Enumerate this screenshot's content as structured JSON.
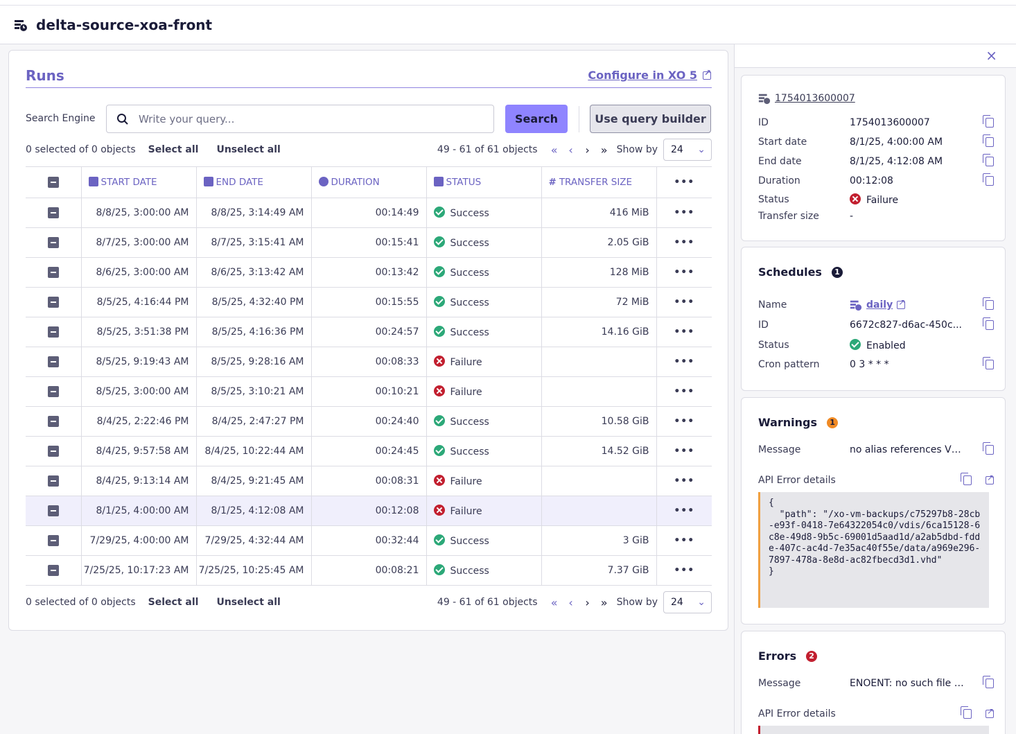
{
  "header": {
    "title": "delta-source-xoa-front",
    "icon": "backup-job-icon"
  },
  "runs": {
    "title": "Runs",
    "configure_link": "Configure in XO 5",
    "search_label": "Search Engine",
    "search_placeholder": "Write your query...",
    "search_button": "Search",
    "builder_button": "Use query builder",
    "selection": {
      "count": "0 selected of 0 objects",
      "select_all": "Select all",
      "unselect_all": "Unselect all"
    },
    "pager": {
      "range": "49 - 61 of 61 objects",
      "show_by_label": "Show by",
      "show_by_value": "24"
    },
    "columns": [
      "START DATE",
      "END DATE",
      "DURATION",
      "STATUS",
      "TRANSFER SIZE"
    ],
    "rows": [
      {
        "start": "8/8/25, 3:00:00 AM",
        "end": "8/8/25, 3:14:49 AM",
        "duration": "00:14:49",
        "status": "Success",
        "size": "416 MiB"
      },
      {
        "start": "8/7/25, 3:00:00 AM",
        "end": "8/7/25, 3:15:41 AM",
        "duration": "00:15:41",
        "status": "Success",
        "size": "2.05 GiB"
      },
      {
        "start": "8/6/25, 3:00:00 AM",
        "end": "8/6/25, 3:13:42 AM",
        "duration": "00:13:42",
        "status": "Success",
        "size": "128 MiB"
      },
      {
        "start": "8/5/25, 4:16:44 PM",
        "end": "8/5/25, 4:32:40 PM",
        "duration": "00:15:55",
        "status": "Success",
        "size": "72 MiB"
      },
      {
        "start": "8/5/25, 3:51:38 PM",
        "end": "8/5/25, 4:16:36 PM",
        "duration": "00:24:57",
        "status": "Success",
        "size": "14.16 GiB"
      },
      {
        "start": "8/5/25, 9:19:43 AM",
        "end": "8/5/25, 9:28:16 AM",
        "duration": "00:08:33",
        "status": "Failure",
        "size": ""
      },
      {
        "start": "8/5/25, 3:00:00 AM",
        "end": "8/5/25, 3:10:21 AM",
        "duration": "00:10:21",
        "status": "Failure",
        "size": ""
      },
      {
        "start": "8/4/25, 2:22:46 PM",
        "end": "8/4/25, 2:47:27 PM",
        "duration": "00:24:40",
        "status": "Success",
        "size": "10.58 GiB"
      },
      {
        "start": "8/4/25, 9:57:58 AM",
        "end": "8/4/25, 10:22:44 AM",
        "duration": "00:24:45",
        "status": "Success",
        "size": "14.52 GiB"
      },
      {
        "start": "8/4/25, 9:13:14 AM",
        "end": "8/4/25, 9:21:45 AM",
        "duration": "00:08:31",
        "status": "Failure",
        "size": ""
      },
      {
        "start": "8/1/25, 4:00:00 AM",
        "end": "8/1/25, 4:12:08 AM",
        "duration": "00:12:08",
        "status": "Failure",
        "size": "",
        "selected": true
      },
      {
        "start": "7/29/25, 4:00:00 AM",
        "end": "7/29/25, 4:32:44 AM",
        "duration": "00:32:44",
        "status": "Success",
        "size": "3 GiB"
      },
      {
        "start": "7/25/25, 10:17:23 AM",
        "end": "7/25/25, 10:25:45 AM",
        "duration": "00:08:21",
        "status": "Success",
        "size": "7.37 GiB"
      }
    ]
  },
  "detail": {
    "run_link": "1754013600007",
    "fields": [
      {
        "k": "ID",
        "v": "1754013600007",
        "copy": true
      },
      {
        "k": "Start date",
        "v": "8/1/25, 4:00:00 AM",
        "copy": true
      },
      {
        "k": "End date",
        "v": "8/1/25, 4:12:08 AM",
        "copy": true
      },
      {
        "k": "Duration",
        "v": "00:12:08",
        "copy": true
      },
      {
        "k": "Status",
        "v": "Failure",
        "copy": false
      },
      {
        "k": "Transfer size",
        "v": "-",
        "copy": false
      }
    ]
  },
  "schedules": {
    "title": "Schedules",
    "count": "1",
    "name_label": "Name",
    "name_value": "daily",
    "id_label": "ID",
    "id_value": "6672c827-d6ac-450c...",
    "status_label": "Status",
    "status_value": "Enabled",
    "cron_label": "Cron pattern",
    "cron_value": "0 3 * * *"
  },
  "warnings": {
    "title": "Warnings",
    "count": "1",
    "message_label": "Message",
    "message_value": "no alias references VH...",
    "api_label": "API Error details",
    "api_code": "{\n  \"path\": \"/xo-vm-backups/c75297b8-28cb-e93f-0418-7e64322054c0/vdis/6ca15128-6c8e-49d8-9b5c-69001d5aad1d/a2ab5dbd-fdde-407c-ac4d-7e35ac40f55e/data/a969e296-7897-478a-8e8d-ac82fbecd3d1.vhd\"\n}"
  },
  "errors": {
    "title": "Errors",
    "count": "2",
    "message_label": "Message",
    "message_value": "ENOENT: no such file or...",
    "api_label": "API Error details"
  },
  "colors": {
    "accent": "#8f84ff",
    "link": "#6b63c2",
    "success": "#2ca878",
    "failure": "#c21f2f",
    "warning": "#f08a24"
  }
}
